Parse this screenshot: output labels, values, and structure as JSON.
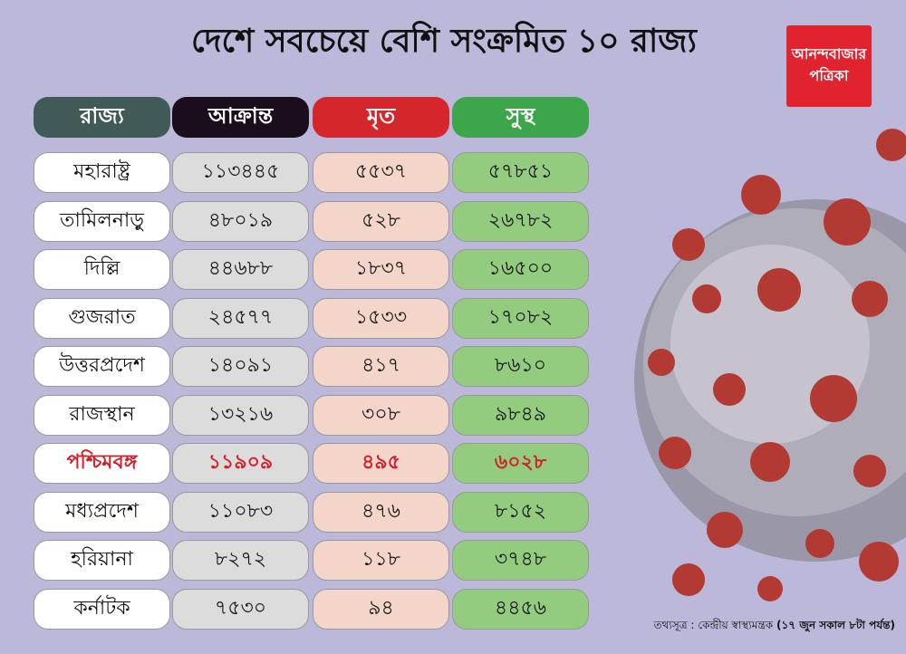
{
  "title": "দেশে সবচেয়ে বেশি সংক্রমিত ১০ রাজ্য",
  "logo": {
    "line1": "আনন্দবাজার",
    "line2": "পত্রিকা"
  },
  "table": {
    "headers": [
      "রাজ্য",
      "আক্রান্ত",
      "মৃত",
      "সুস্থ"
    ],
    "rows": [
      [
        "মহারাষ্ট্র",
        "১১৩৪৪৫",
        "৫৫৩৭",
        "৫৭৮৫১"
      ],
      [
        "তামিলনাড়ু",
        "৪৮০১৯",
        "৫২৮",
        "২৬৭৮২"
      ],
      [
        "দিল্লি",
        "৪৪৬৮৮",
        "১৮৩৭",
        "১৬৫০০"
      ],
      [
        "গুজরাত",
        "২৪৫৭৭",
        "১৫৩৩",
        "১৭০৮২"
      ],
      [
        "উত্তরপ্রদেশ",
        "১৪০৯১",
        "৪১৭",
        "৮৬১০"
      ],
      [
        "রাজস্থান",
        "১৩২১৬",
        "৩০৮",
        "৯৮৪৯"
      ],
      [
        "পশ্চিমবঙ্গ",
        "১১৯০৯",
        "৪৯৫",
        "৬০২৮"
      ],
      [
        "মধ্যপ্রদেশ",
        "১১০৮৩",
        "৪৭৬",
        "৮১৫২"
      ],
      [
        "হরিয়ানা",
        "৮২৭২",
        "১১৮",
        "৩৭৪৮"
      ],
      [
        "কর্নাটক",
        "৭৫৩০",
        "৯৪",
        "৪৪৫৬"
      ]
    ]
  },
  "source": {
    "label": "তথ্যসূত্র : কেন্দ্রীয় স্বাস্থ্যমন্ত্রক",
    "note": "(১৭ জুন সকাল ৮টা পর্যন্ত)"
  }
}
